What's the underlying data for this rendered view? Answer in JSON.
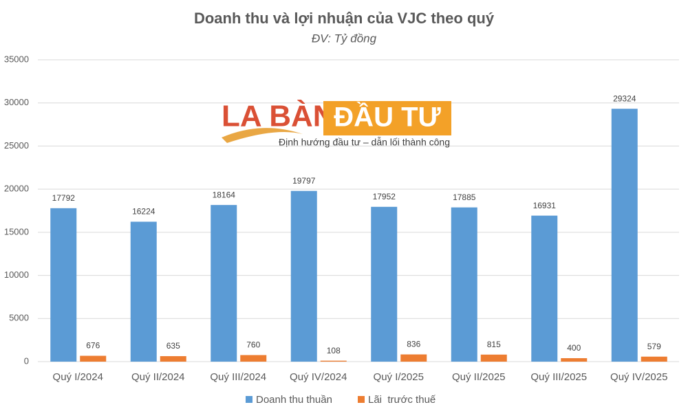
{
  "chart_data": {
    "type": "bar",
    "title": "Doanh thu và lợi nhuận của VJC theo quý",
    "subtitle": "ĐV: Tỷ đồng",
    "categories": [
      "Quý I/2024",
      "Quý II/2024",
      "Quý III/2024",
      "Quý IV/2024",
      "Quý I/2025",
      "Quý II/2025",
      "Quý III/2025",
      "Quý IV/2025"
    ],
    "series": [
      {
        "name": "Doanh thu thuần",
        "color": "#5b9bd5",
        "values": [
          17792,
          16224,
          18164,
          19797,
          17952,
          17885,
          16931,
          29324
        ]
      },
      {
        "name": "Lãi  trước thuế",
        "color": "#ed7d31",
        "values": [
          676,
          635,
          760,
          108,
          836,
          815,
          400,
          579
        ]
      }
    ],
    "ylim": [
      0,
      35000
    ],
    "yticks": [
      0,
      5000,
      10000,
      15000,
      20000,
      25000,
      30000,
      35000
    ],
    "grid": true,
    "legend": "bottom",
    "watermark": {
      "brand_left": "LA BÀN",
      "brand_right": "ĐẦU TƯ",
      "tagline": "Định hướng đầu tư – dẫn lối thành công"
    }
  }
}
